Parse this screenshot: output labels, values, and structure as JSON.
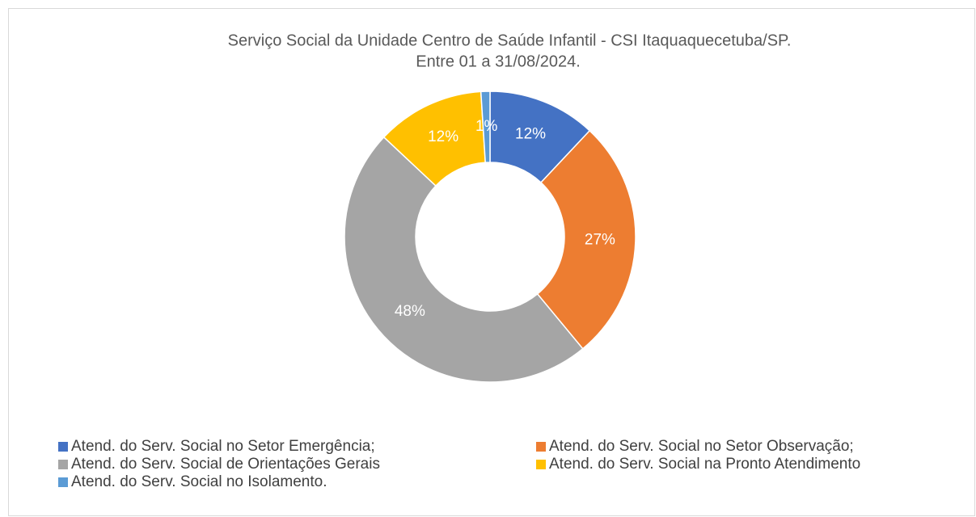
{
  "chart_data": {
    "type": "donut",
    "title": [
      "Serviço Social da Unidade Centro de Saúde Infantil - CSI Itaquaquecetuba/SP.",
      "Entre  01 a 31/08/2024."
    ],
    "categories": [
      "Atend. do Serv. Social no Setor Emergência;",
      "Atend. do Serv. Social no Setor Observação;",
      "Atend. do Serv. Social de Orientações Gerais",
      "Atend. do Serv. Social na Pronto Atendimento",
      "Atend. do Serv. Social no Isolamento."
    ],
    "values": [
      12,
      27,
      48,
      12,
      1
    ],
    "value_labels": [
      "12%",
      "27%",
      "48%",
      "12%",
      "1%"
    ],
    "colors": [
      "#4472c4",
      "#ed7d31",
      "#a5a5a5",
      "#ffc000",
      "#5b9bd5"
    ],
    "legend": "bottom"
  }
}
